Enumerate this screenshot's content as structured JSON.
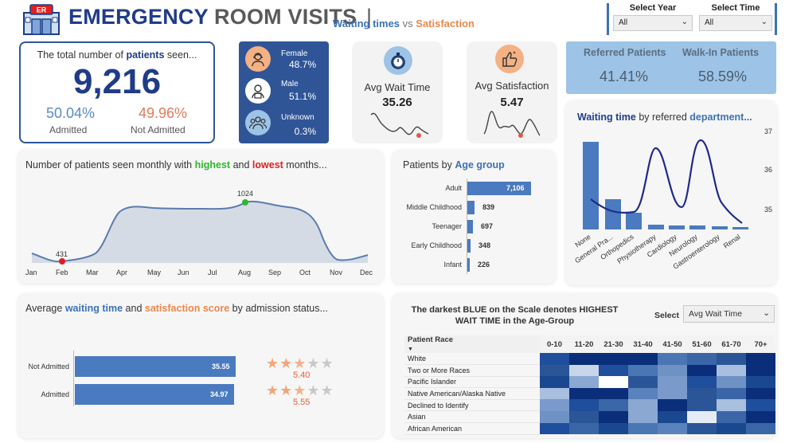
{
  "header": {
    "logo_text": "ER",
    "title_part1": "EMERGENCY",
    "title_part2": "ROOM VISITS",
    "title_sep": "|",
    "subtitle_wait": "Waiting times",
    "subtitle_vs": "vs",
    "subtitle_sat": "Satisfaction"
  },
  "slicers": [
    {
      "label": "Select Year",
      "value": "All"
    },
    {
      "label": "Select Time",
      "value": "All"
    }
  ],
  "total": {
    "caption_pre": "The total number of",
    "caption_bold": "patients",
    "caption_post": "seen...",
    "value": "9,216",
    "admitted_pct": "50.04%",
    "admitted_label": "Admitted",
    "not_admitted_pct": "49.96%",
    "not_admitted_label": "Not Admitted"
  },
  "gender": [
    {
      "label": "Female",
      "value": "48.7%",
      "icon": "female-icon"
    },
    {
      "label": "Male",
      "value": "51.1%",
      "icon": "male-icon"
    },
    {
      "label": "Unknown",
      "value": "0.3%",
      "icon": "group-icon"
    }
  ],
  "avg_wait": {
    "title": "Avg Wait Time",
    "value": "35.26",
    "icon": "stopwatch-icon"
  },
  "avg_sat": {
    "title": "Avg Satisfaction",
    "value": "5.47",
    "icon": "thumbs-up-icon"
  },
  "referral": {
    "referred_label": "Referred Patients",
    "referred_value": "41.41%",
    "walkin_label": "Walk-In Patients",
    "walkin_value": "58.59%"
  },
  "monthly": {
    "title_pre": "Number of patients seen monthly with",
    "title_high": "highest",
    "title_and": "and",
    "title_low": "lowest",
    "title_post": "months...",
    "months": [
      "Jan",
      "Feb",
      "Mar",
      "Apr",
      "May",
      "Jun",
      "Jul",
      "Aug",
      "Sep",
      "Oct",
      "Nov",
      "Dec"
    ],
    "high_label": "1024",
    "low_label": "431"
  },
  "age": {
    "title_pre": "Patients by",
    "title_bold": "Age group",
    "groups": [
      {
        "label": "Adult",
        "value": "7,106"
      },
      {
        "label": "Middle Childhood",
        "value": "839"
      },
      {
        "label": "Teenager",
        "value": "697"
      },
      {
        "label": "Early Childhood",
        "value": "348"
      },
      {
        "label": "Infant",
        "value": "226"
      }
    ]
  },
  "dept": {
    "title_bold": "Waiting time",
    "title_mid": "by referred",
    "title_bold2": "department...",
    "y_ticks": [
      "37",
      "36",
      "35"
    ],
    "departments": [
      "None",
      "General Pra...",
      "Orthopedics",
      "Physiotherapy",
      "Cardiology",
      "Neurology",
      "Gastroenterology",
      "Renal"
    ]
  },
  "admission": {
    "title_pre": "Average",
    "title_wait": "waiting time",
    "title_and": "and",
    "title_sat": "satisfaction score",
    "title_post": "by admission status...",
    "rows": [
      {
        "label": "Not Admitted",
        "wait": "35.55",
        "sat": "5.40",
        "stars": 3
      },
      {
        "label": "Admitted",
        "wait": "34.97",
        "sat": "5.55",
        "stars": 3
      }
    ]
  },
  "heatmap": {
    "title": "The darkest BLUE on the Scale denotes HIGHEST WAIT TIME in the Age-Group",
    "select_label": "Select",
    "select_value": "Avg Wait Time",
    "race_header": "Patient Race",
    "age_headers": [
      "0-10",
      "11-20",
      "21-30",
      "31-40",
      "41-50",
      "51-60",
      "61-70",
      "70+"
    ],
    "races": [
      "White",
      "Two or More Races",
      "Pacific Islander",
      "Native American/Alaska Native",
      "Declined to Identify",
      "Asian",
      "African American"
    ]
  },
  "colors": {
    "navy": "#1f3c88",
    "accent_blue": "#2f5597",
    "bar_blue": "#4a7abf",
    "orange": "#e8894e",
    "peach": "#f4b183",
    "light_blue": "#9dc3e6"
  }
}
